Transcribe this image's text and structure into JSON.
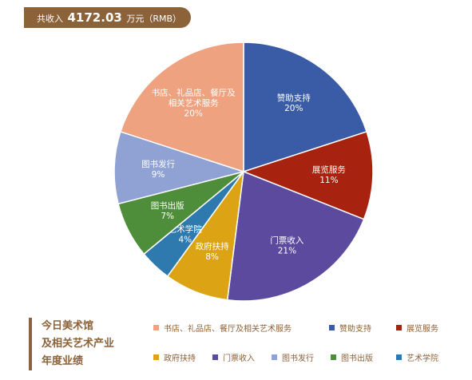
{
  "header": {
    "prefix": "共收入",
    "amount": "4172.03",
    "suffix": "万元（RMB）"
  },
  "chart_data": {
    "type": "pie",
    "slices": [
      {
        "label": "赞助支持",
        "label_lines": [
          "赞助支持"
        ],
        "value": 20,
        "value_text": "20%",
        "color": "#3a5ba5"
      },
      {
        "label": "展览服务",
        "label_lines": [
          "展览服务"
        ],
        "value": 11,
        "value_text": "11%",
        "color": "#a8230f"
      },
      {
        "label": "门票收入",
        "label_lines": [
          "门票收入"
        ],
        "value": 21,
        "value_text": "21%",
        "color": "#5b4a9e"
      },
      {
        "label": "政府扶持",
        "label_lines": [
          "政府扶持"
        ],
        "value": 8,
        "value_text": "8%",
        "color": "#dca414"
      },
      {
        "label": "艺术学院",
        "label_lines": [
          "艺术学院"
        ],
        "value": 4,
        "value_text": "4%",
        "color": "#2e7aae"
      },
      {
        "label": "图书出版",
        "label_lines": [
          "图书出版"
        ],
        "value": 7,
        "value_text": "7%",
        "color": "#4e8e3a"
      },
      {
        "label": "图书发行",
        "label_lines": [
          "图书发行"
        ],
        "value": 9,
        "value_text": "9%",
        "color": "#8fa2d3"
      },
      {
        "label": "书店、礼品店、餐厅及相关艺术服务",
        "label_lines": [
          "书店、礼品店、餐厅及",
          "相关艺术服务"
        ],
        "value": 20,
        "value_text": "20%",
        "color": "#efa27f"
      }
    ],
    "legend": [
      {
        "label": "书店、礼品店、餐厅及相关艺术服务",
        "color": "#efa27f"
      },
      {
        "label": "赞助支持",
        "color": "#3a5ba5"
      },
      {
        "label": "展览服务",
        "color": "#a8230f"
      },
      {
        "label": "政府扶持",
        "color": "#dca414"
      },
      {
        "label": "门票收入",
        "color": "#5b4a9e"
      },
      {
        "label": "图书发行",
        "color": "#8fa2d3"
      },
      {
        "label": "图书出版",
        "color": "#4e8e3a"
      },
      {
        "label": "艺术学院",
        "color": "#2e7aae"
      }
    ],
    "legend_placement": "bottom-right"
  },
  "footer": {
    "title_lines": [
      "今日美术馆",
      "及相关艺术产业",
      "年度业绩"
    ]
  }
}
